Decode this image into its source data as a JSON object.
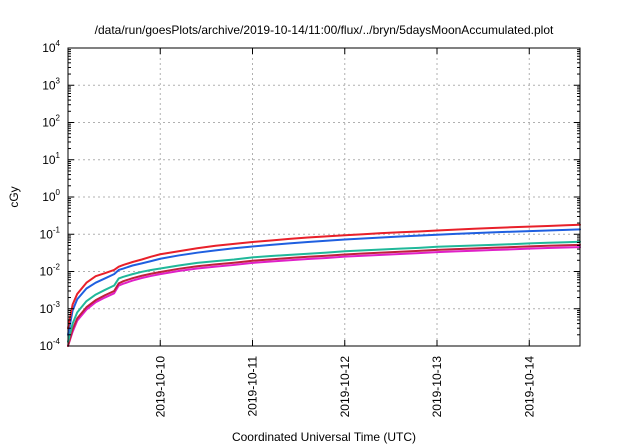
{
  "chart_data": {
    "type": "line",
    "title": "/data/run/goesPlots/archive/2019-10-14/11:00/flux/../bryn/5daysMoonAccumulated.plot",
    "xlabel": "Coordinated Universal Time (UTC)",
    "ylabel": "cGy",
    "x_tick_labels": [
      "2019-10-10",
      "2019-10-11",
      "2019-10-12",
      "2019-10-13",
      "2019-10-14"
    ],
    "x_ticks_days": [
      1,
      2,
      3,
      4,
      5
    ],
    "xlim_days": [
      0,
      5.55
    ],
    "y_scale": "log",
    "ylim": [
      0.0001,
      10000
    ],
    "y_ticks": [
      {
        "base": "10",
        "exp": "-4",
        "value": 0.0001
      },
      {
        "base": "10",
        "exp": "-3",
        "value": 0.001
      },
      {
        "base": "10",
        "exp": "-2",
        "value": 0.01
      },
      {
        "base": "10",
        "exp": "-1",
        "value": 0.1
      },
      {
        "base": "10",
        "exp": "0",
        "value": 1
      },
      {
        "base": "10",
        "exp": "1",
        "value": 10
      },
      {
        "base": "10",
        "exp": "2",
        "value": 100
      },
      {
        "base": "10",
        "exp": "3",
        "value": 1000
      },
      {
        "base": "10",
        "exp": "4",
        "value": 10000
      }
    ],
    "grid": true,
    "legend": "none",
    "series": [
      {
        "color": "#e8202a",
        "points": [
          [
            0,
            0.0003
          ],
          [
            0.05,
            0.0013
          ],
          [
            0.1,
            0.0025
          ],
          [
            0.2,
            0.005
          ],
          [
            0.3,
            0.0075
          ],
          [
            0.4,
            0.009
          ],
          [
            0.5,
            0.011
          ],
          [
            0.55,
            0.0135
          ],
          [
            0.6,
            0.015
          ],
          [
            0.7,
            0.018
          ],
          [
            0.8,
            0.021
          ],
          [
            0.9,
            0.025
          ],
          [
            1.0,
            0.029
          ],
          [
            1.2,
            0.035
          ],
          [
            1.4,
            0.042
          ],
          [
            1.6,
            0.049
          ],
          [
            1.8,
            0.055
          ],
          [
            2.0,
            0.062
          ],
          [
            2.2,
            0.068
          ],
          [
            2.4,
            0.075
          ],
          [
            2.6,
            0.082
          ],
          [
            2.8,
            0.088
          ],
          [
            3.0,
            0.094
          ],
          [
            3.2,
            0.1
          ],
          [
            3.4,
            0.107
          ],
          [
            3.6,
            0.113
          ],
          [
            3.8,
            0.119
          ],
          [
            4.0,
            0.126
          ],
          [
            4.2,
            0.133
          ],
          [
            4.4,
            0.14
          ],
          [
            4.6,
            0.147
          ],
          [
            4.8,
            0.154
          ],
          [
            5.0,
            0.16
          ],
          [
            5.2,
            0.167
          ],
          [
            5.4,
            0.174
          ],
          [
            5.55,
            0.18
          ]
        ]
      },
      {
        "color": "#1f5fe0",
        "points": [
          [
            0,
            0.0002
          ],
          [
            0.05,
            0.0009
          ],
          [
            0.1,
            0.0018
          ],
          [
            0.2,
            0.0035
          ],
          [
            0.3,
            0.005
          ],
          [
            0.4,
            0.0065
          ],
          [
            0.5,
            0.0085
          ],
          [
            0.55,
            0.011
          ],
          [
            0.6,
            0.012
          ],
          [
            0.7,
            0.0145
          ],
          [
            0.8,
            0.0165
          ],
          [
            0.9,
            0.019
          ],
          [
            1.0,
            0.022
          ],
          [
            1.2,
            0.027
          ],
          [
            1.4,
            0.032
          ],
          [
            1.6,
            0.037
          ],
          [
            1.8,
            0.042
          ],
          [
            2.0,
            0.047
          ],
          [
            2.2,
            0.052
          ],
          [
            2.4,
            0.057
          ],
          [
            2.6,
            0.062
          ],
          [
            2.8,
            0.067
          ],
          [
            3.0,
            0.072
          ],
          [
            3.2,
            0.077
          ],
          [
            3.4,
            0.082
          ],
          [
            3.6,
            0.087
          ],
          [
            3.8,
            0.092
          ],
          [
            4.0,
            0.097
          ],
          [
            4.2,
            0.102
          ],
          [
            4.4,
            0.107
          ],
          [
            4.6,
            0.112
          ],
          [
            4.8,
            0.117
          ],
          [
            5.0,
            0.121
          ],
          [
            5.2,
            0.126
          ],
          [
            5.4,
            0.131
          ],
          [
            5.55,
            0.135
          ]
        ]
      },
      {
        "color": "#20b89a",
        "points": [
          [
            0,
            0.00013
          ],
          [
            0.05,
            0.0004
          ],
          [
            0.1,
            0.0008
          ],
          [
            0.2,
            0.0016
          ],
          [
            0.3,
            0.0024
          ],
          [
            0.4,
            0.0032
          ],
          [
            0.5,
            0.0042
          ],
          [
            0.55,
            0.0065
          ],
          [
            0.6,
            0.0072
          ],
          [
            0.7,
            0.0085
          ],
          [
            0.8,
            0.0098
          ],
          [
            0.9,
            0.011
          ],
          [
            1.0,
            0.012
          ],
          [
            1.2,
            0.0145
          ],
          [
            1.4,
            0.017
          ],
          [
            1.6,
            0.019
          ],
          [
            1.8,
            0.021
          ],
          [
            2.0,
            0.024
          ],
          [
            2.2,
            0.026
          ],
          [
            2.4,
            0.028
          ],
          [
            2.6,
            0.03
          ],
          [
            2.8,
            0.032
          ],
          [
            3.0,
            0.035
          ],
          [
            3.2,
            0.037
          ],
          [
            3.4,
            0.039
          ],
          [
            3.6,
            0.041
          ],
          [
            3.8,
            0.043
          ],
          [
            4.0,
            0.046
          ],
          [
            4.2,
            0.048
          ],
          [
            4.4,
            0.05
          ],
          [
            4.6,
            0.052
          ],
          [
            4.8,
            0.054
          ],
          [
            5.0,
            0.057
          ],
          [
            5.2,
            0.059
          ],
          [
            5.4,
            0.061
          ],
          [
            5.55,
            0.063
          ]
        ]
      },
      {
        "color": "#c0203c",
        "points": [
          [
            0,
            0.0001
          ],
          [
            0.05,
            0.00028
          ],
          [
            0.1,
            0.00055
          ],
          [
            0.2,
            0.0011
          ],
          [
            0.3,
            0.0017
          ],
          [
            0.4,
            0.0023
          ],
          [
            0.5,
            0.003
          ],
          [
            0.55,
            0.0048
          ],
          [
            0.6,
            0.0055
          ],
          [
            0.7,
            0.0066
          ],
          [
            0.8,
            0.0077
          ],
          [
            0.9,
            0.0087
          ],
          [
            1.0,
            0.0097
          ],
          [
            1.2,
            0.0118
          ],
          [
            1.4,
            0.0138
          ],
          [
            1.6,
            0.0155
          ],
          [
            1.8,
            0.0172
          ],
          [
            2.0,
            0.0195
          ],
          [
            2.2,
            0.0212
          ],
          [
            2.4,
            0.023
          ],
          [
            2.6,
            0.0248
          ],
          [
            2.8,
            0.0265
          ],
          [
            3.0,
            0.0287
          ],
          [
            3.2,
            0.0304
          ],
          [
            3.4,
            0.0322
          ],
          [
            3.6,
            0.034
          ],
          [
            3.8,
            0.0357
          ],
          [
            4.0,
            0.038
          ],
          [
            4.2,
            0.0398
          ],
          [
            4.4,
            0.0416
          ],
          [
            4.6,
            0.0433
          ],
          [
            4.8,
            0.045
          ],
          [
            5.0,
            0.0472
          ],
          [
            5.2,
            0.049
          ],
          [
            5.4,
            0.0508
          ],
          [
            5.55,
            0.052
          ]
        ]
      },
      {
        "color": "#e020c8",
        "points": [
          [
            0,
            0.0001
          ],
          [
            0.05,
            0.00024
          ],
          [
            0.1,
            0.00048
          ],
          [
            0.2,
            0.00095
          ],
          [
            0.3,
            0.0015
          ],
          [
            0.4,
            0.002
          ],
          [
            0.5,
            0.0026
          ],
          [
            0.55,
            0.0042
          ],
          [
            0.6,
            0.0047
          ],
          [
            0.7,
            0.0057
          ],
          [
            0.8,
            0.0067
          ],
          [
            0.9,
            0.0076
          ],
          [
            1.0,
            0.0085
          ],
          [
            1.2,
            0.0103
          ],
          [
            1.4,
            0.012
          ],
          [
            1.6,
            0.0135
          ],
          [
            1.8,
            0.015
          ],
          [
            2.0,
            0.017
          ],
          [
            2.2,
            0.0185
          ],
          [
            2.4,
            0.02
          ],
          [
            2.6,
            0.0216
          ],
          [
            2.8,
            0.0231
          ],
          [
            3.0,
            0.025
          ],
          [
            3.2,
            0.0265
          ],
          [
            3.4,
            0.028
          ],
          [
            3.6,
            0.0296
          ],
          [
            3.8,
            0.0311
          ],
          [
            4.0,
            0.0331
          ],
          [
            4.2,
            0.0347
          ],
          [
            4.4,
            0.0362
          ],
          [
            4.6,
            0.0377
          ],
          [
            4.8,
            0.0392
          ],
          [
            5.0,
            0.0411
          ],
          [
            5.2,
            0.0427
          ],
          [
            5.4,
            0.0442
          ],
          [
            5.55,
            0.045
          ]
        ]
      }
    ]
  }
}
